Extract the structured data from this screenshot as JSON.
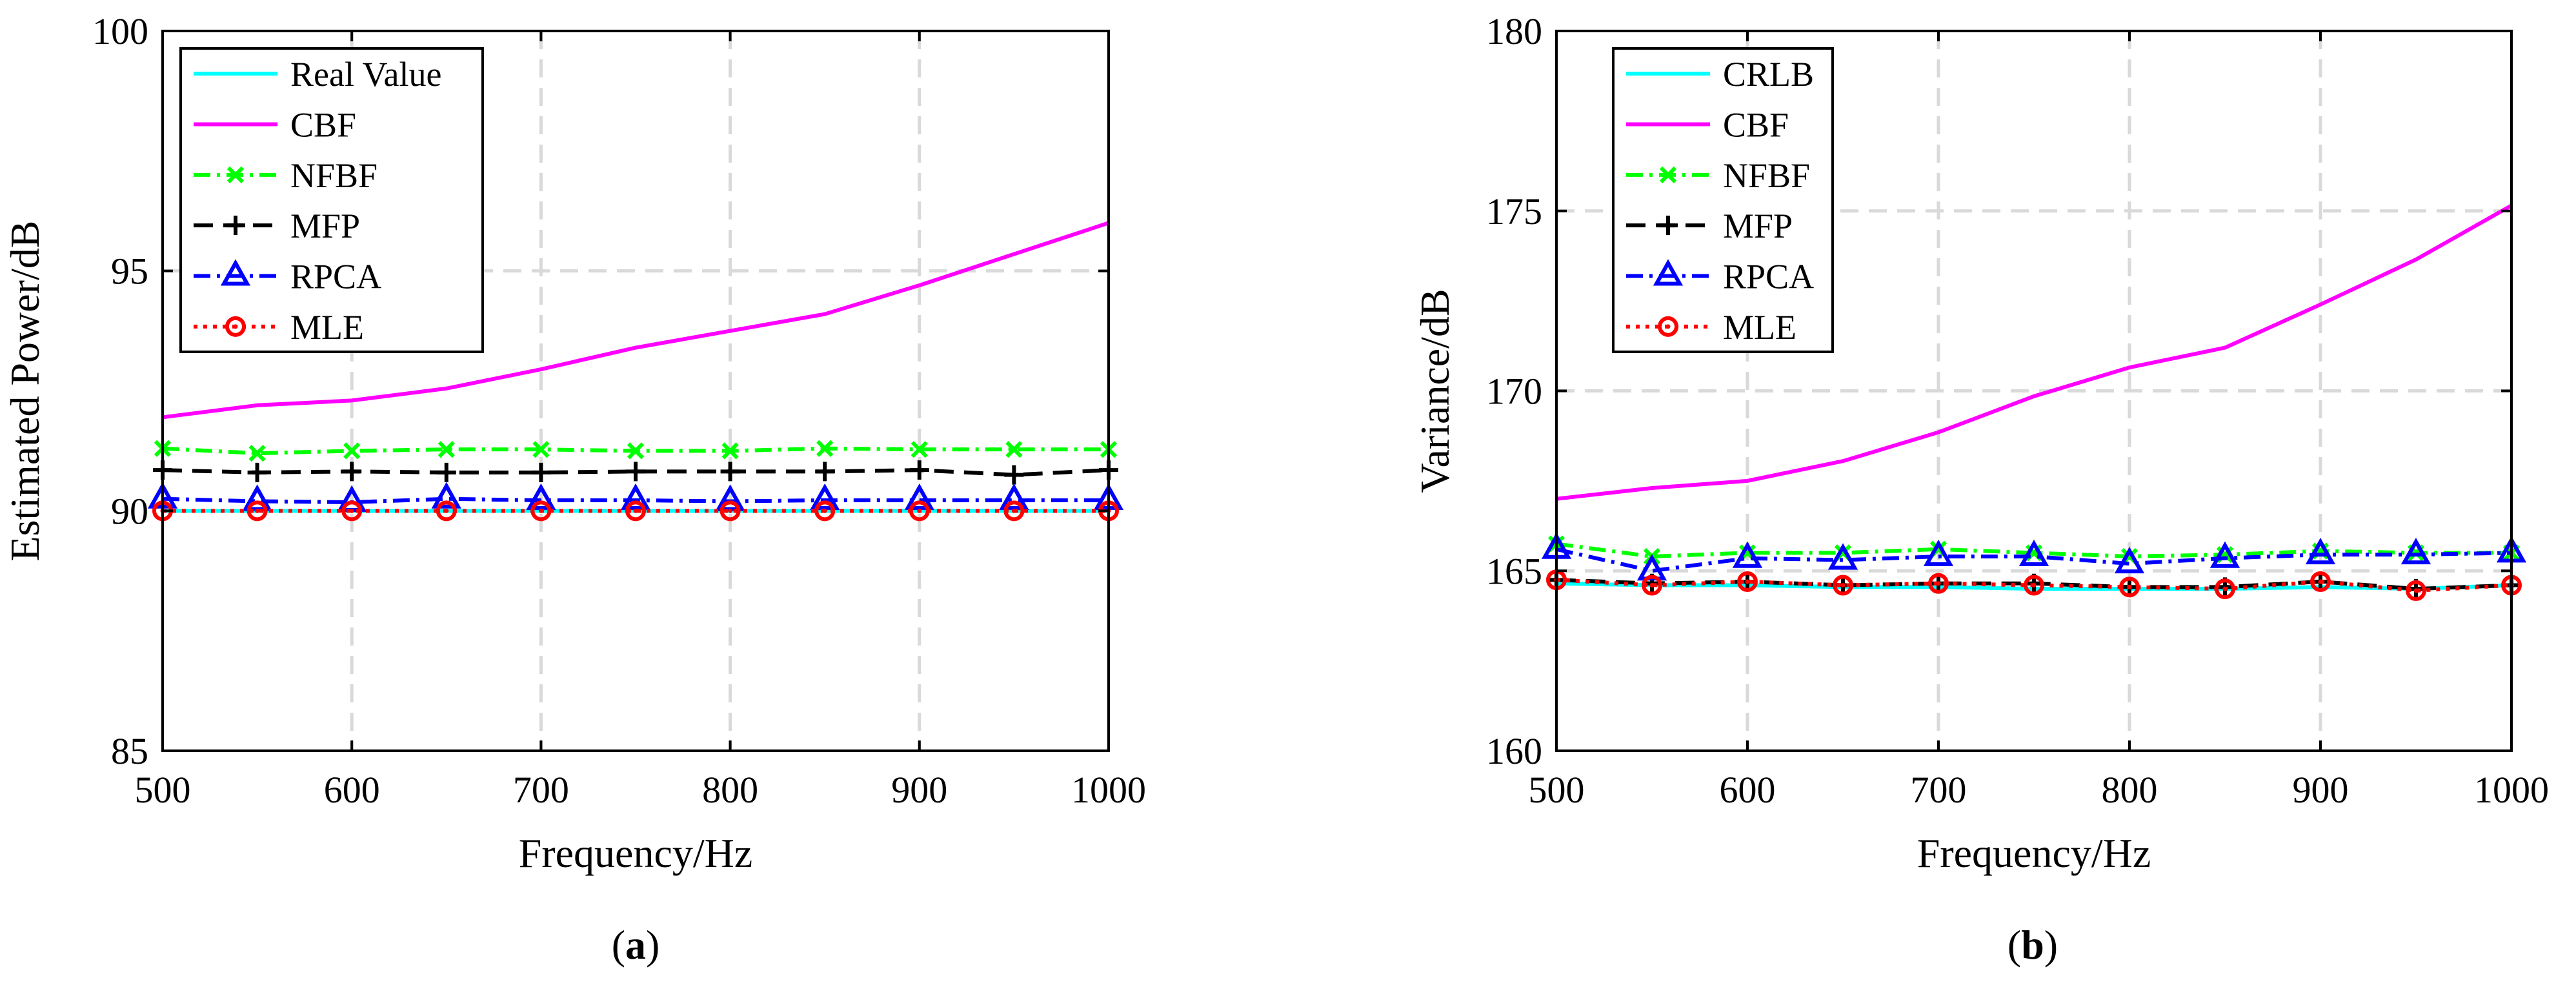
{
  "chart_data": [
    {
      "id": "a",
      "type": "line",
      "caption_open": "(",
      "caption_letter": "a",
      "caption_close": ")",
      "xlabel": "Frequency/Hz",
      "ylabel": "Estimated Power/dB",
      "xlim": [
        500,
        1000
      ],
      "ylim": [
        85,
        100
      ],
      "xticks": [
        500,
        600,
        700,
        800,
        900,
        1000
      ],
      "yticks": [
        85,
        90,
        95,
        100
      ],
      "grid": true,
      "legend_position": "top-left",
      "x": [
        500,
        550,
        600,
        650,
        700,
        750,
        800,
        850,
        900,
        950,
        1000
      ],
      "series": [
        {
          "name": "Real Value",
          "color": "#00ffff",
          "line": "solid",
          "marker": "none",
          "values": [
            90,
            90,
            90,
            90,
            90,
            90,
            90,
            90,
            90,
            90,
            90
          ]
        },
        {
          "name": "CBF",
          "color": "#ff00ff",
          "line": "solid",
          "marker": "none",
          "values": [
            91.95,
            92.2,
            92.3,
            92.55,
            92.95,
            93.4,
            93.75,
            94.1,
            94.7,
            95.35,
            96.0
          ]
        },
        {
          "name": "NFBF",
          "color": "#00ff00",
          "line": "dashdot",
          "marker": "x",
          "values": [
            91.3,
            91.2,
            91.25,
            91.28,
            91.28,
            91.25,
            91.25,
            91.3,
            91.28,
            91.28,
            91.28
          ]
        },
        {
          "name": "MFP",
          "color": "#000000",
          "line": "dashed",
          "marker": "plus",
          "values": [
            90.85,
            90.8,
            90.82,
            90.8,
            90.8,
            90.82,
            90.82,
            90.82,
            90.85,
            90.75,
            90.85
          ]
        },
        {
          "name": "RPCA",
          "color": "#0000ff",
          "line": "dashdot",
          "marker": "triangle",
          "values": [
            90.25,
            90.2,
            90.18,
            90.25,
            90.22,
            90.22,
            90.2,
            90.22,
            90.22,
            90.22,
            90.22
          ]
        },
        {
          "name": "MLE",
          "color": "#ff0000",
          "line": "dotted",
          "marker": "circle",
          "values": [
            90.0,
            90.0,
            90.0,
            90.0,
            90.0,
            90.0,
            90.0,
            90.0,
            90.0,
            90.0,
            90.0
          ]
        }
      ]
    },
    {
      "id": "b",
      "type": "line",
      "caption_open": "(",
      "caption_letter": "b",
      "caption_close": ")",
      "xlabel": "Frequency/Hz",
      "ylabel": "Variance/dB",
      "xlim": [
        500,
        1000
      ],
      "ylim": [
        160,
        180
      ],
      "xticks": [
        500,
        600,
        700,
        800,
        900,
        1000
      ],
      "yticks": [
        160,
        165,
        170,
        175,
        180
      ],
      "grid": true,
      "legend_position": "top-left",
      "x": [
        500,
        550,
        600,
        650,
        700,
        750,
        800,
        850,
        900,
        950,
        1000
      ],
      "series": [
        {
          "name": "CRLB",
          "color": "#00ffff",
          "line": "solid",
          "marker": "none",
          "values": [
            164.65,
            164.6,
            164.6,
            164.55,
            164.55,
            164.5,
            164.5,
            164.5,
            164.55,
            164.5,
            164.6
          ]
        },
        {
          "name": "CBF",
          "color": "#ff00ff",
          "line": "solid",
          "marker": "none",
          "values": [
            167.0,
            167.3,
            167.5,
            168.05,
            168.85,
            169.85,
            170.65,
            171.2,
            172.4,
            173.65,
            175.15
          ]
        },
        {
          "name": "NFBF",
          "color": "#00ff00",
          "line": "dashdot",
          "marker": "x",
          "values": [
            165.75,
            165.4,
            165.5,
            165.5,
            165.6,
            165.5,
            165.4,
            165.45,
            165.55,
            165.5,
            165.5
          ]
        },
        {
          "name": "MFP",
          "color": "#000000",
          "line": "dashed",
          "marker": "plus",
          "values": [
            164.75,
            164.65,
            164.7,
            164.6,
            164.65,
            164.65,
            164.55,
            164.55,
            164.7,
            164.5,
            164.6
          ]
        },
        {
          "name": "RPCA",
          "color": "#0000ff",
          "line": "dashdot",
          "marker": "triangle",
          "values": [
            165.6,
            165.0,
            165.35,
            165.3,
            165.4,
            165.4,
            165.2,
            165.35,
            165.45,
            165.45,
            165.5
          ]
        },
        {
          "name": "MLE",
          "color": "#ff0000",
          "line": "dotted",
          "marker": "circle",
          "values": [
            164.75,
            164.6,
            164.7,
            164.6,
            164.65,
            164.6,
            164.55,
            164.5,
            164.7,
            164.45,
            164.6
          ]
        }
      ]
    }
  ]
}
